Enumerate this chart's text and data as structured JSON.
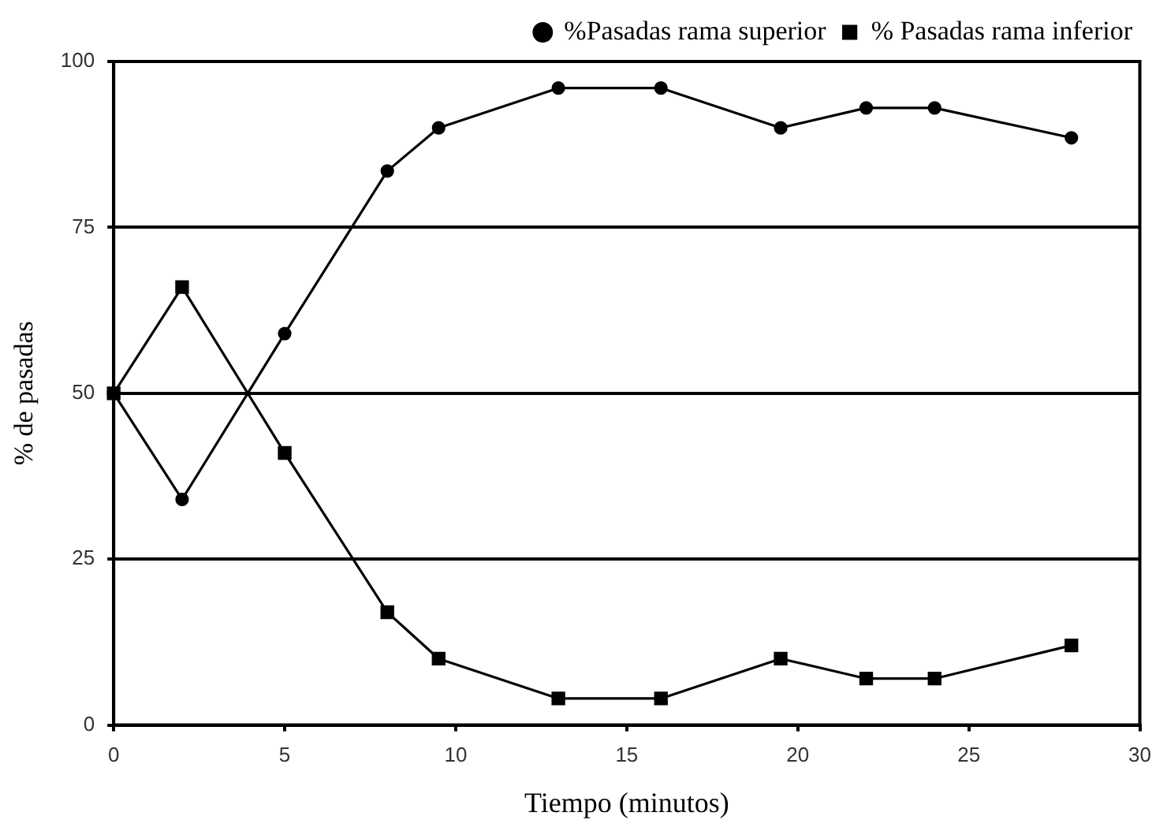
{
  "chart_data": {
    "type": "line",
    "xlabel": "Tiempo (minutos)",
    "ylabel": "% de pasadas",
    "x": [
      0,
      2,
      5,
      8,
      9.5,
      13,
      16,
      19.5,
      22,
      24,
      28
    ],
    "series": [
      {
        "name": "%Pasadas rama superior",
        "color": "#000000",
        "marker": "circle",
        "values": [
          50,
          34,
          59,
          83.5,
          90,
          96,
          96,
          90,
          93,
          93,
          88.5
        ]
      },
      {
        "name": "% Pasadas rama inferior",
        "color": "#000000",
        "marker": "square",
        "values": [
          50,
          66,
          41,
          17,
          10,
          4,
          4,
          10,
          7,
          7,
          12
        ]
      }
    ],
    "xlim": [
      0,
      30
    ],
    "xticks": [
      0,
      5,
      10,
      15,
      20,
      25,
      30
    ],
    "ylim": [
      0,
      100
    ],
    "yticks": [
      0,
      25,
      50,
      75,
      100
    ],
    "grid": "y",
    "legend": "top",
    "line_style": "solid"
  }
}
